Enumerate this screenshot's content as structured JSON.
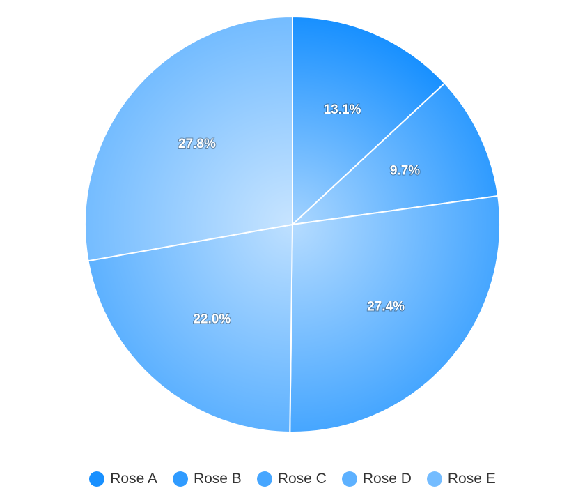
{
  "chart_data": {
    "type": "pie",
    "categories": [
      "Rose A",
      "Rose B",
      "Rose C",
      "Rose D",
      "Rose E"
    ],
    "values": [
      13.1,
      9.7,
      27.4,
      22.0,
      27.8
    ],
    "labels": [
      "13.1%",
      "9.7%",
      "27.4%",
      "22.0%",
      "27.8%"
    ],
    "colors": [
      "#1890ff",
      "#2f9bff",
      "#46a6ff",
      "#5db1ff",
      "#74bcff"
    ],
    "legend_position": "bottom"
  }
}
